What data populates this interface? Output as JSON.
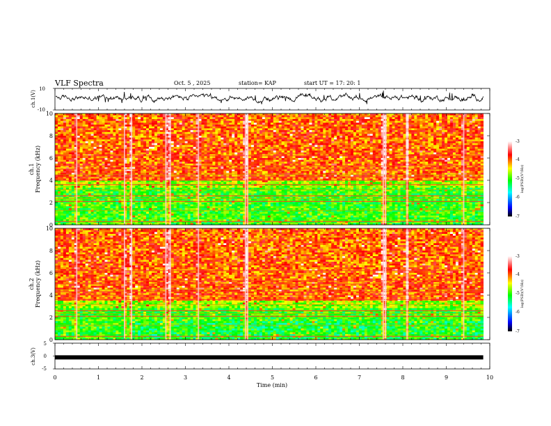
{
  "header": {
    "title": "VLF Spectra",
    "date": "Oct. 5  , 2025",
    "station": "station= KAP",
    "start_ut": "start  UT  =   17: 20: 1"
  },
  "chart_data": [
    {
      "type": "line",
      "name": "ch1-waveform",
      "ylabel": "ch.1(V)",
      "ylim": [
        -10,
        10
      ],
      "yticks": [
        "10",
        "-10"
      ],
      "xlim": [
        0,
        10
      ],
      "grid": false,
      "description_values": "noise waveform, roughly between -5 and 8 V",
      "data_end_min": 9.85
    },
    {
      "type": "heatmap",
      "name": "ch1-spectrogram",
      "ylabel_line1": "ch.1",
      "ylabel_line2": "Frequency (kHz)",
      "ylim": [
        0,
        10
      ],
      "yticks": [
        "0",
        "2",
        "4",
        "6",
        "8",
        "10"
      ],
      "xlim": [
        0,
        10
      ],
      "data_end_min": 9.85,
      "dominant_levels": {
        "0-4 kHz": -5,
        "4-10 kHz": -4
      },
      "impulse_times_min": [
        0.5,
        1.6,
        1.76,
        2.55,
        2.65,
        3.3,
        4.38,
        4.43,
        7.55,
        7.6,
        8.1,
        9.4
      ],
      "colorbar": {
        "label": "log(PSD)(V²/Hz)",
        "ticks": [
          "-3",
          "-4",
          "-5",
          "-6",
          "-7"
        ],
        "range": [
          -7,
          -3
        ]
      }
    },
    {
      "type": "heatmap",
      "name": "ch2-spectrogram",
      "ylabel_line1": "ch.2",
      "ylabel_line2": "Frequency (kHz)",
      "ylim": [
        0,
        10
      ],
      "yticks": [
        "0",
        "2",
        "4",
        "6",
        "8",
        "10"
      ],
      "xlim": [
        0,
        10
      ],
      "data_end_min": 9.85,
      "dominant_levels": {
        "0-3.5 kHz": -5,
        "3.5-10 kHz": -4
      },
      "impulse_times_min": [
        0.5,
        1.6,
        1.76,
        2.55,
        2.65,
        3.3,
        4.38,
        4.43,
        7.55,
        7.6,
        8.1,
        9.4
      ],
      "colorbar": {
        "label": "log(PSD)(V²/Hz)",
        "ticks": [
          "-3",
          "-4",
          "-5",
          "-6",
          "-7"
        ],
        "range": [
          -7,
          -3
        ]
      }
    },
    {
      "type": "line",
      "name": "ch3-waveform",
      "ylabel": "ch.3(V)",
      "ylim": [
        -5,
        5
      ],
      "yticks": [
        "5",
        "0",
        "-5"
      ],
      "xlim": [
        0,
        10
      ],
      "level_v": -0.5,
      "data_end_min": 9.85,
      "xlabel": "Time  (min)",
      "xticks": [
        "0",
        "1",
        "2",
        "3",
        "4",
        "5",
        "6",
        "7",
        "8",
        "9",
        "10"
      ]
    }
  ],
  "colors": {
    "colormap": [
      "#000000",
      "#0000ff",
      "#00ffff",
      "#00ff00",
      "#ffff00",
      "#ff0000",
      "#ffffff"
    ],
    "line": "#000000",
    "background": "#ffffff"
  }
}
